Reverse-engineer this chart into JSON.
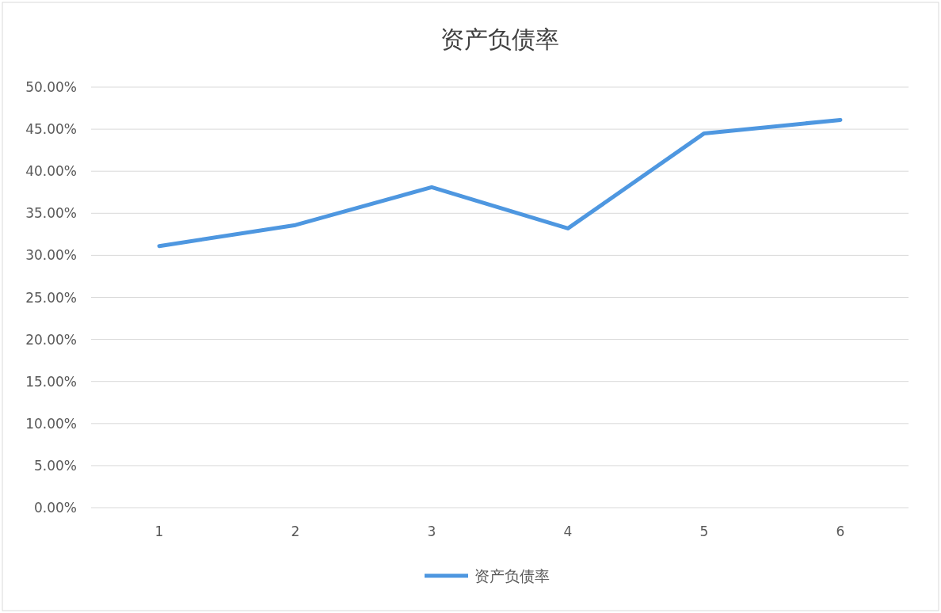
{
  "chart_data": {
    "type": "line",
    "title": "资产负债率",
    "categories": [
      "1",
      "2",
      "3",
      "4",
      "5",
      "6"
    ],
    "series": [
      {
        "name": "资产负债率",
        "color": "#4e97e0",
        "values": [
          31.1,
          33.6,
          38.1,
          33.2,
          44.5,
          46.1
        ]
      }
    ],
    "ylim": [
      0,
      50
    ],
    "yticks": [
      {
        "value": 0,
        "label": "0.00%"
      },
      {
        "value": 5,
        "label": "5.00%"
      },
      {
        "value": 10,
        "label": "10.00%"
      },
      {
        "value": 15,
        "label": "15.00%"
      },
      {
        "value": 20,
        "label": "20.00%"
      },
      {
        "value": 25,
        "label": "25.00%"
      },
      {
        "value": 30,
        "label": "30.00%"
      },
      {
        "value": 35,
        "label": "35.00%"
      },
      {
        "value": 40,
        "label": "40.00%"
      },
      {
        "value": 45,
        "label": "45.00%"
      },
      {
        "value": 50,
        "label": "50.00%"
      }
    ],
    "grid": "y",
    "legend": "bottom",
    "marker": "none",
    "line_style": "solid"
  }
}
